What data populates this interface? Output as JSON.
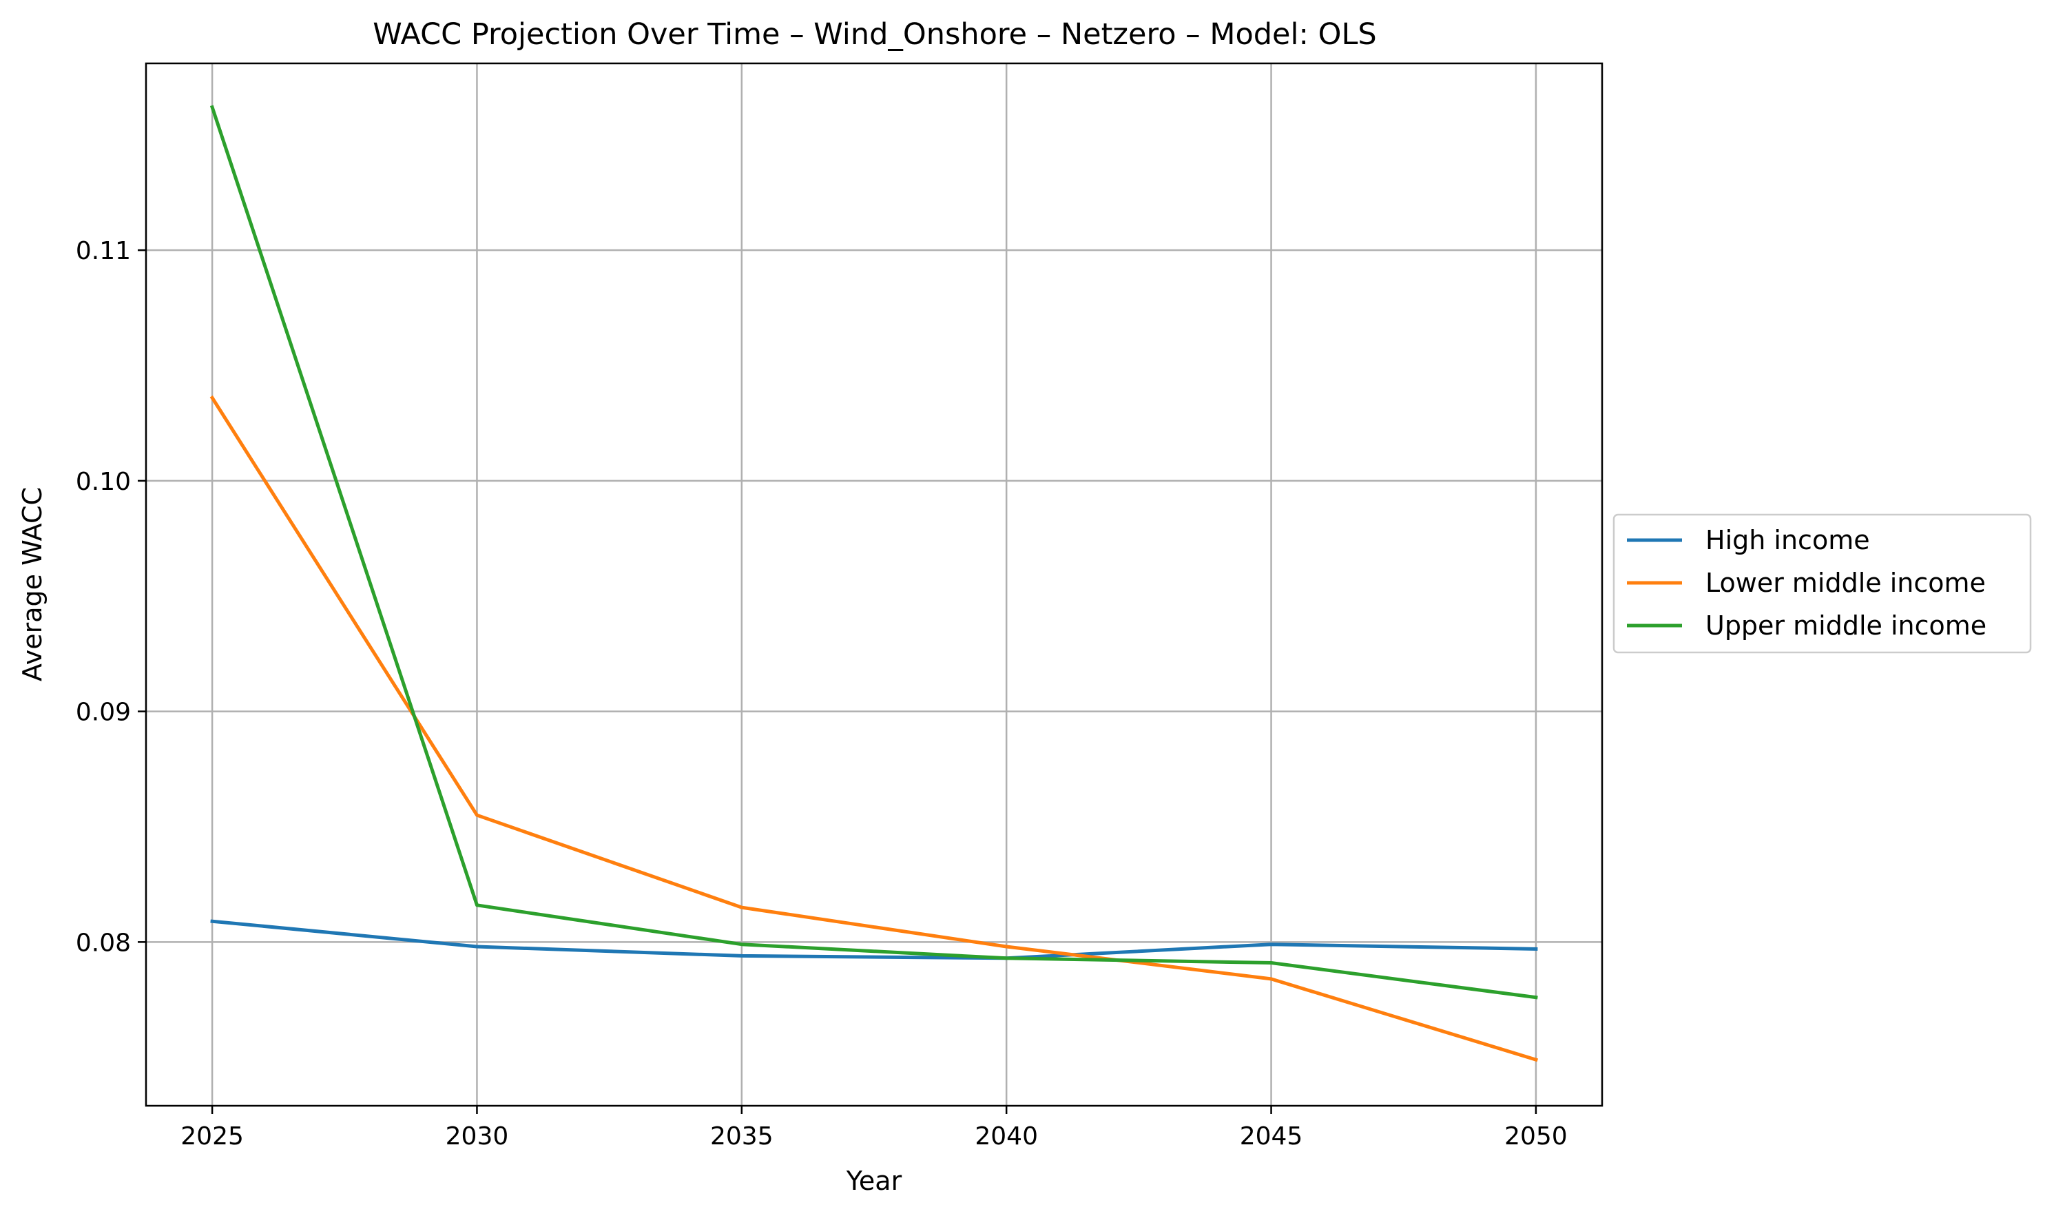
{
  "chart_data": {
    "type": "line",
    "title": "WACC Projection Over Time – Wind_Onshore – Netzero – Model: OLS",
    "xlabel": "Year",
    "ylabel": "Average WACC",
    "x": [
      2025,
      2030,
      2035,
      2040,
      2045,
      2050
    ],
    "x_ticks": [
      "2025",
      "2030",
      "2035",
      "2040",
      "2045",
      "2050"
    ],
    "y_ticks": [
      "0.08",
      "0.09",
      "0.10",
      "0.11"
    ],
    "xlim": [
      2023.75,
      2051.25
    ],
    "ylim": [
      0.0729,
      0.1181
    ],
    "grid": true,
    "legend_position": "outside right",
    "series": [
      {
        "name": "High income",
        "color": "#1f77b4",
        "values": [
          0.0809,
          0.0798,
          0.0794,
          0.0793,
          0.0799,
          0.0797
        ]
      },
      {
        "name": "Lower middle income",
        "color": "#ff7f0e",
        "values": [
          0.1036,
          0.0855,
          0.0815,
          0.0798,
          0.0784,
          0.0749
        ]
      },
      {
        "name": "Upper middle income",
        "color": "#2ca02c",
        "values": [
          0.1162,
          0.0816,
          0.0799,
          0.0793,
          0.0791,
          0.0776
        ]
      }
    ]
  }
}
